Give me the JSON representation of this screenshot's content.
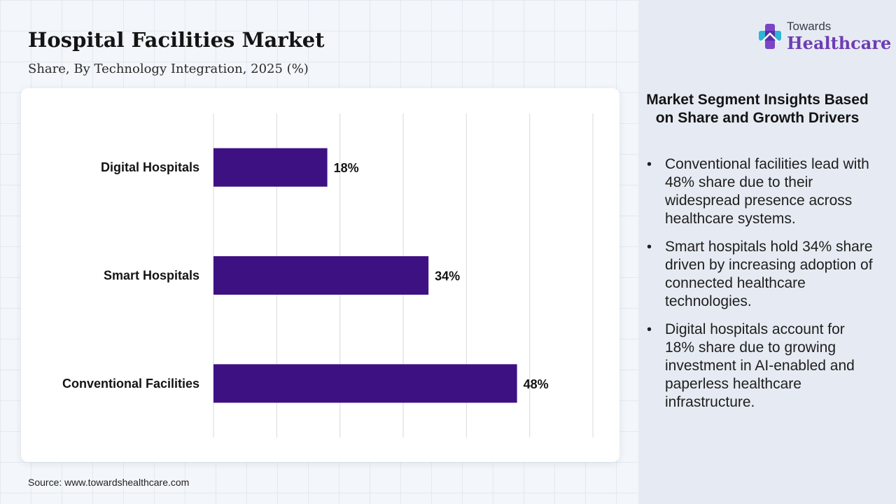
{
  "header": {
    "title": "Hospital Facilities Market",
    "subtitle": "Share, By Technology Integration, 2025 (%)"
  },
  "logo": {
    "line1": "Towards",
    "line2": "Healthcare",
    "icon": "medical-cross-icon"
  },
  "chart_data": {
    "type": "bar",
    "orientation": "horizontal",
    "categories": [
      "Digital Hospitals",
      "Smart Hospitals",
      "Conventional Facilities"
    ],
    "values": [
      18,
      34,
      48
    ],
    "data_labels": [
      "18%",
      "34%",
      "48%"
    ],
    "xlim": [
      0,
      60
    ],
    "grid": true,
    "bar_color": "#3e1183"
  },
  "insights": {
    "title": "Market Segment Insights Based on Share and Growth Drivers",
    "items": [
      "Conventional facilities lead with 48% share due to their widespread presence across healthcare systems.",
      "Smart hospitals hold 34% share driven by increasing adoption of connected healthcare technologies.",
      "Digital hospitals account for 18% share due to growing investment in AI-enabled and paperless healthcare infrastructure."
    ]
  },
  "footer": {
    "source": "Source: www.towardshealthcare.com"
  }
}
